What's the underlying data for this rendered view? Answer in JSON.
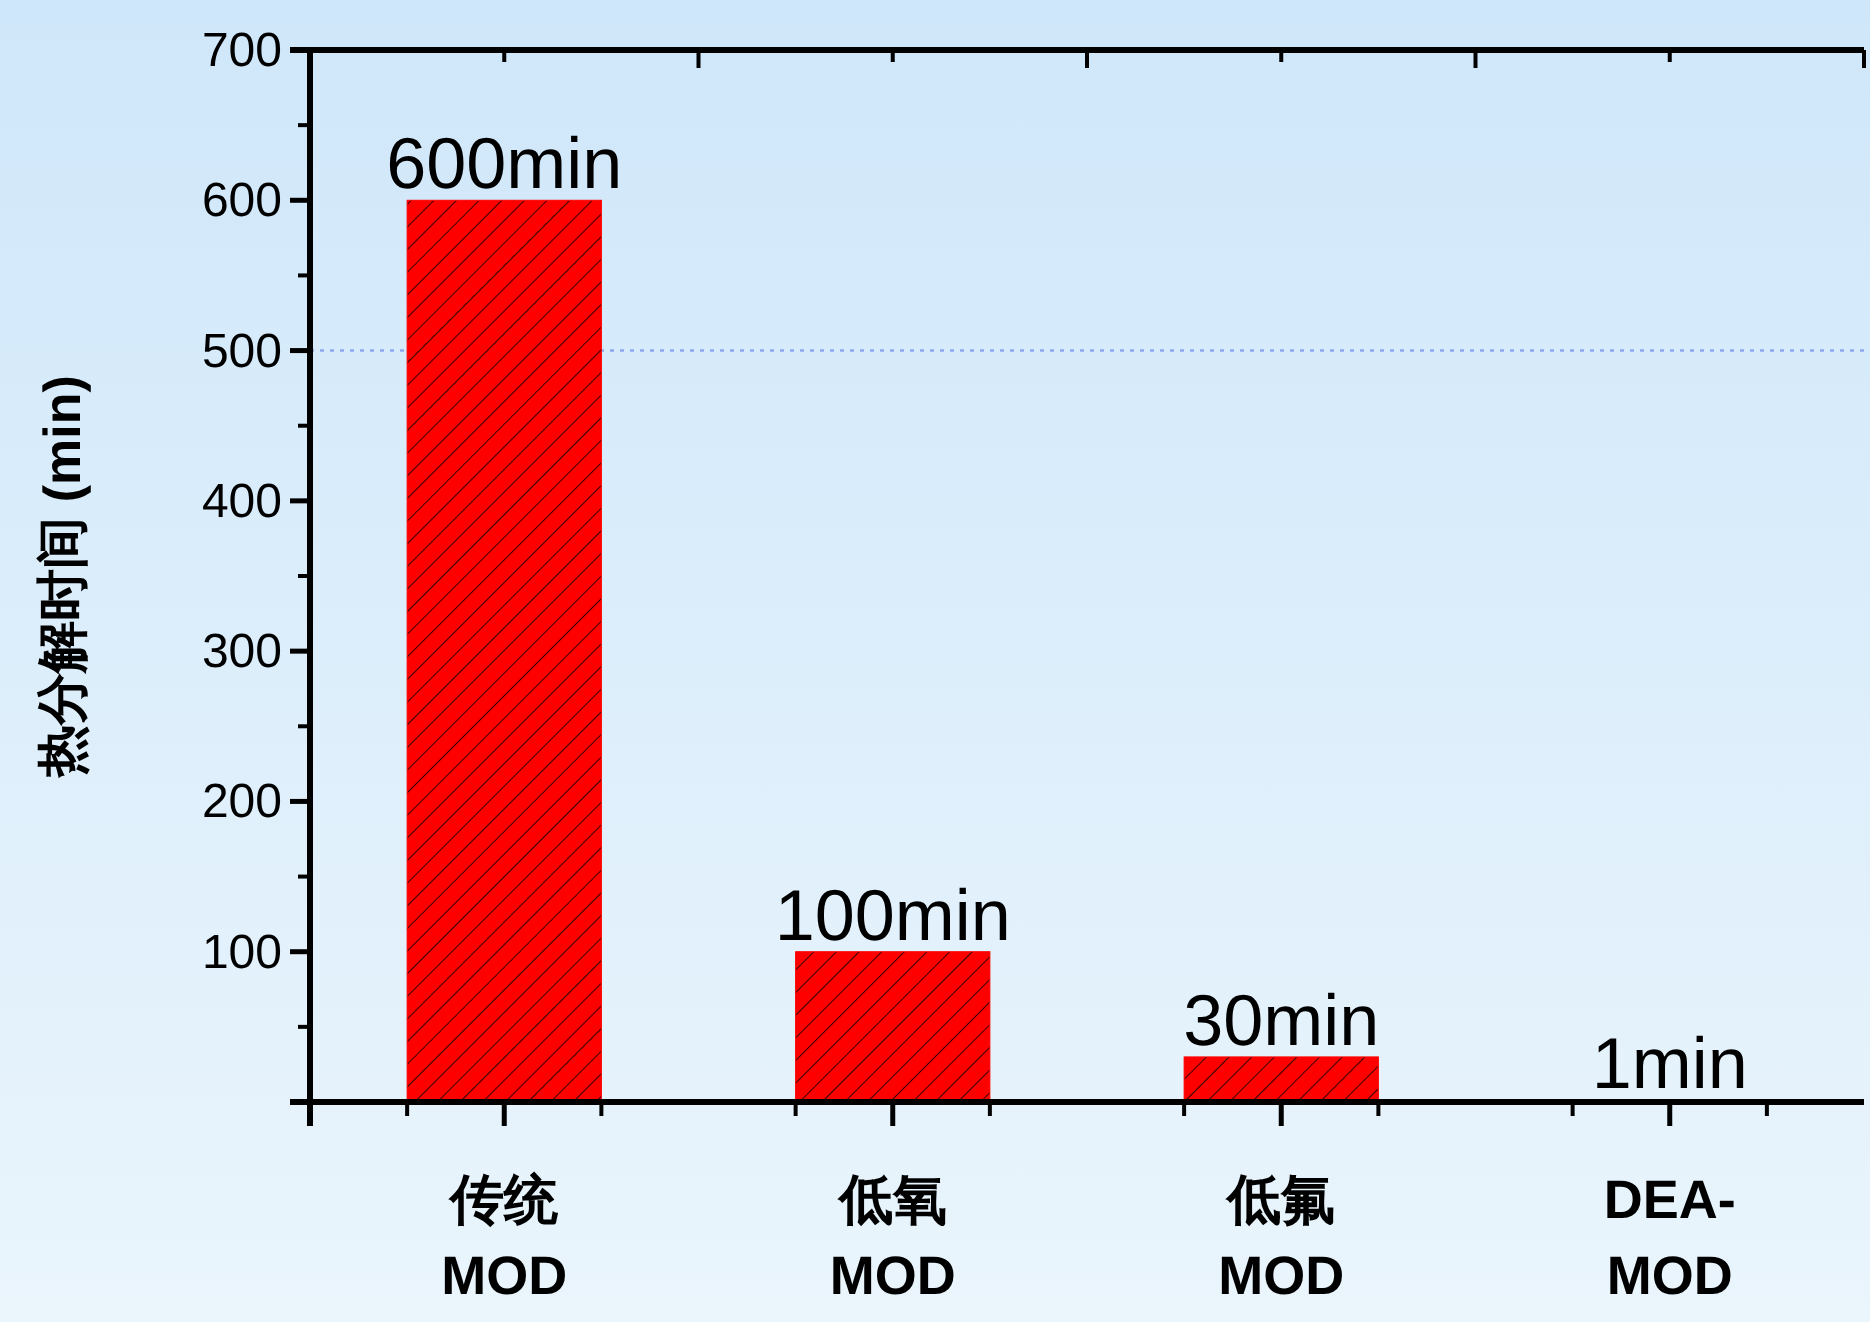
{
  "chart_data": {
    "type": "bar",
    "ylabel": "热分解时间 (min)",
    "categories": [
      "传统\nMOD",
      "低氧\nMOD",
      "低氟\nMOD",
      "DEA-\nMOD"
    ],
    "values": [
      600,
      100,
      30,
      1
    ],
    "value_labels": [
      "600min",
      "100min",
      "30min",
      "1min"
    ],
    "color": "#ff0000",
    "ylim": [
      0,
      700
    ],
    "yticks": [
      {
        "value": 0,
        "label": null
      },
      100,
      200,
      300,
      400,
      500,
      600,
      700
    ],
    "ref_lines": [
      {
        "axis": "y",
        "value": 500,
        "color": "#8fa8f0",
        "line_style": "dotted"
      }
    ],
    "grid": false
  }
}
